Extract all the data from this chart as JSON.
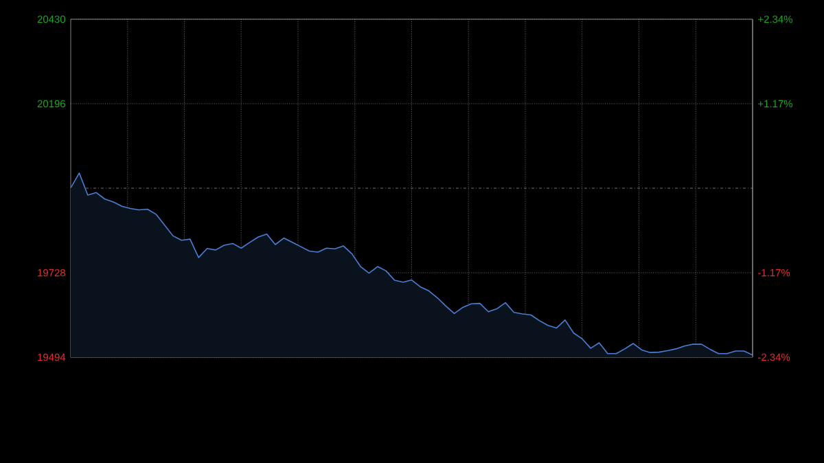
{
  "chart_data": {
    "type": "area",
    "categories": [
      null,
      null,
      null,
      null,
      null,
      null,
      null,
      null,
      null,
      null,
      null,
      null,
      null,
      null,
      null,
      null,
      null,
      null,
      null,
      null,
      null,
      null,
      null,
      null,
      null,
      null,
      null,
      null,
      null,
      null,
      null,
      null,
      null,
      null,
      null,
      null,
      null,
      null,
      null,
      null,
      null,
      null,
      null,
      null,
      null,
      null,
      null,
      null,
      null,
      null,
      null,
      null,
      null,
      null,
      null,
      null,
      null,
      null,
      null,
      null,
      null,
      null,
      null,
      null,
      null,
      null,
      null,
      null,
      null,
      null,
      null,
      null,
      null,
      null,
      null,
      null,
      null,
      null,
      null,
      null,
      null
    ],
    "ylim": [
      19494,
      20430
    ],
    "yticks": [
      19494,
      19728,
      20196,
      20430
    ],
    "y2lim": [
      -2.34,
      2.34
    ],
    "y2ticks": [
      {
        "value": -2.34,
        "label": "-2.34%"
      },
      {
        "value": -1.17,
        "label": "-1.17%"
      },
      {
        "value": 1.17,
        "label": "+1.17%"
      },
      {
        "value": 2.34,
        "label": "+2.34%"
      }
    ],
    "grid": true,
    "ref_lines": [
      {
        "axis": "y",
        "value": 19962,
        "label": null,
        "color": "#8a8a8a",
        "line_style": "dashed"
      }
    ],
    "series": [
      {
        "color": "#4a7fd4",
        "values": [
          19963,
          20004,
          19943,
          19950,
          19932,
          19924,
          19912,
          19906,
          19902,
          19904,
          19890,
          19860,
          19830,
          19818,
          19821,
          19770,
          19795,
          19791,
          19804,
          19809,
          19796,
          19812,
          19827,
          19835,
          19806,
          19824,
          19812,
          19800,
          19788,
          19785,
          19796,
          19794,
          19802,
          19780,
          19745,
          19727,
          19745,
          19733,
          19707,
          19702,
          19708,
          19689,
          19678,
          19659,
          19636,
          19615,
          19632,
          19642,
          19643,
          19620,
          19628,
          19645,
          19618,
          19614,
          19611,
          19595,
          19582,
          19575,
          19597,
          19561,
          19545,
          19519,
          19534,
          19504,
          19504,
          19517,
          19532,
          19514,
          19507,
          19508,
          19512,
          19517,
          19525,
          19530,
          19530,
          19516,
          19504,
          19504,
          19511,
          19511,
          19500
        ]
      }
    ]
  }
}
